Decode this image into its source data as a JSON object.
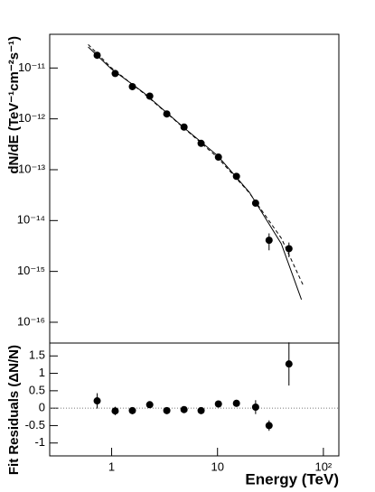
{
  "chart_data": [
    {
      "type": "scatter",
      "log_x": true,
      "log_y": true,
      "y_label": "dN/dE (TeV⁻¹cm⁻²s⁻¹)",
      "xlim": [
        0.26,
        140
      ],
      "ylim": [
        3.9e-17,
        4.6e-11
      ],
      "yticks": [
        {
          "value": 1e-11,
          "label": "10⁻¹¹"
        },
        {
          "value": 1e-12,
          "label": "10⁻¹²"
        },
        {
          "value": 1e-13,
          "label": "10⁻¹³"
        },
        {
          "value": 1e-14,
          "label": "10⁻¹⁴"
        },
        {
          "value": 1e-15,
          "label": "10⁻¹⁵"
        },
        {
          "value": 1e-16,
          "label": "10⁻¹⁶"
        }
      ],
      "x": [
        0.73,
        1.08,
        1.57,
        2.29,
        3.32,
        4.83,
        7.0,
        10.2,
        15.1,
        22.9,
        30.7,
        47.3
      ],
      "values": [
        1.78e-11,
        7.8e-12,
        4.3e-12,
        2.8e-12,
        1.25e-12,
        6.9e-13,
        3.3e-13,
        1.77e-13,
        7.4e-14,
        2.2e-14,
        4.1e-15,
        2.8e-15
      ],
      "errors": [
        2.5e-12,
        6e-13,
        2.5e-13,
        1.6e-13,
        7e-14,
        4e-14,
        2e-14,
        1.2e-14,
        6e-15,
        3e-15,
        1.5e-15,
        9e-16
      ],
      "color": "#000000",
      "curves": [
        {
          "style": "solid",
          "x": [
            0.6,
            1,
            2,
            5,
            10,
            20,
            40,
            62
          ],
          "values": [
            2.6e-11,
            9.5e-12,
            3.3e-12,
            6.3e-13,
            1.9e-13,
            3.6e-14,
            3.5e-15,
            2.8e-16
          ]
        },
        {
          "style": "dashed",
          "x": [
            0.6,
            1,
            2,
            5,
            10,
            20,
            40,
            64
          ],
          "values": [
            2.9e-11,
            1e-11,
            3.2e-12,
            6.2e-13,
            1.75e-13,
            3.5e-14,
            4.5e-15,
            5.5e-16
          ]
        }
      ]
    },
    {
      "type": "scatter",
      "log_x": true,
      "log_y": false,
      "y_label": "Fit Residuals (ΔN/N)",
      "x_label": "Energy (TeV)",
      "xlim": [
        0.26,
        140
      ],
      "ylim": [
        -1.37,
        1.87
      ],
      "xticks": [
        1,
        10,
        {
          "value": 100,
          "label": "10²"
        }
      ],
      "yticks": [
        -1,
        -0.5,
        0,
        0.5,
        1,
        1.5
      ],
      "x": [
        0.73,
        1.08,
        1.57,
        2.29,
        3.32,
        4.83,
        7.0,
        10.2,
        15.1,
        22.9,
        30.7,
        47.3
      ],
      "values": [
        0.21,
        -0.08,
        -0.07,
        0.1,
        -0.07,
        -0.04,
        -0.07,
        0.12,
        0.14,
        0.03,
        -0.5,
        1.27
      ],
      "errors": [
        0.22,
        0.12,
        0.1,
        0.07,
        0.05,
        0.06,
        0.07,
        0.08,
        0.1,
        0.2,
        0.15,
        0.62
      ],
      "color": "#000000",
      "zero_line": true
    }
  ]
}
